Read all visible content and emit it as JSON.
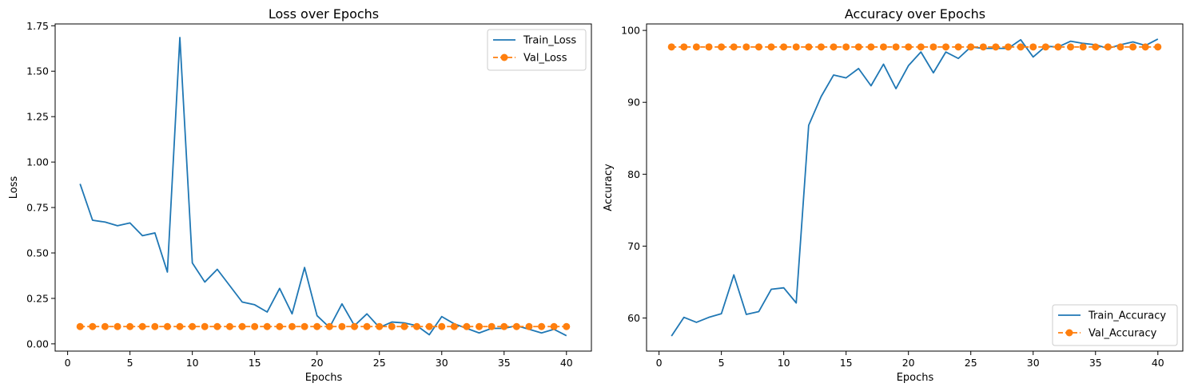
{
  "chart_data": [
    {
      "type": "line",
      "title": "Loss over Epochs",
      "xlabel": "Epochs",
      "ylabel": "Loss",
      "xlim": [
        -1,
        42
      ],
      "ylim": [
        -0.04,
        1.76
      ],
      "xticks": [
        0,
        5,
        10,
        15,
        20,
        25,
        30,
        35,
        40
      ],
      "yticks": [
        0.0,
        0.25,
        0.5,
        0.75,
        1.0,
        1.25,
        1.5,
        1.75
      ],
      "ytick_labels": [
        "0.00",
        "0.25",
        "0.50",
        "0.75",
        "1.00",
        "1.25",
        "1.50",
        "1.75"
      ],
      "grid": false,
      "legend": "top-right",
      "x": [
        1,
        2,
        3,
        4,
        5,
        6,
        7,
        8,
        9,
        10,
        11,
        12,
        13,
        14,
        15,
        16,
        17,
        18,
        19,
        20,
        21,
        22,
        23,
        24,
        25,
        26,
        27,
        28,
        29,
        30,
        31,
        32,
        33,
        34,
        35,
        36,
        37,
        38,
        39,
        40
      ],
      "series": [
        {
          "name": "Train_Loss",
          "color": "#1f77b4",
          "style": "solid",
          "marker": "none",
          "values": [
            0.88,
            0.68,
            0.67,
            0.65,
            0.665,
            0.595,
            0.61,
            0.395,
            1.685,
            0.445,
            0.34,
            0.41,
            0.32,
            0.23,
            0.215,
            0.175,
            0.305,
            0.165,
            0.42,
            0.155,
            0.09,
            0.22,
            0.1,
            0.165,
            0.09,
            0.12,
            0.115,
            0.1,
            0.05,
            0.15,
            0.11,
            0.085,
            0.06,
            0.085,
            0.085,
            0.1,
            0.08,
            0.06,
            0.08,
            0.045
          ]
        },
        {
          "name": "Val_Loss",
          "color": "#ff7f0e",
          "style": "dashed",
          "marker": "circle",
          "values": [
            0.095,
            0.095,
            0.095,
            0.095,
            0.095,
            0.095,
            0.095,
            0.095,
            0.095,
            0.095,
            0.095,
            0.095,
            0.095,
            0.095,
            0.095,
            0.095,
            0.095,
            0.095,
            0.095,
            0.095,
            0.095,
            0.095,
            0.095,
            0.095,
            0.095,
            0.095,
            0.095,
            0.095,
            0.095,
            0.095,
            0.095,
            0.095,
            0.095,
            0.095,
            0.095,
            0.095,
            0.095,
            0.095,
            0.095,
            0.095
          ]
        }
      ]
    },
    {
      "type": "line",
      "title": "Accuracy over Epochs",
      "xlabel": "Epochs",
      "ylabel": "Accuracy",
      "xlim": [
        -1,
        42
      ],
      "ylim": [
        55.4,
        100.9
      ],
      "xticks": [
        0,
        5,
        10,
        15,
        20,
        25,
        30,
        35,
        40
      ],
      "yticks": [
        60,
        70,
        80,
        90,
        100
      ],
      "ytick_labels": [
        "60",
        "70",
        "80",
        "90",
        "100"
      ],
      "grid": false,
      "legend": "bottom-right",
      "x": [
        1,
        2,
        3,
        4,
        5,
        6,
        7,
        8,
        9,
        10,
        11,
        12,
        13,
        14,
        15,
        16,
        17,
        18,
        19,
        20,
        21,
        22,
        23,
        24,
        25,
        26,
        27,
        28,
        29,
        30,
        31,
        32,
        33,
        34,
        35,
        36,
        37,
        38,
        39,
        40
      ],
      "series": [
        {
          "name": "Train_Accuracy",
          "color": "#1f77b4",
          "style": "solid",
          "marker": "none",
          "values": [
            57.5,
            60.1,
            59.4,
            60.1,
            60.6,
            66.0,
            60.5,
            60.9,
            64.0,
            64.2,
            62.1,
            86.8,
            90.8,
            93.8,
            93.4,
            94.7,
            92.3,
            95.3,
            91.9,
            95.1,
            97.0,
            94.1,
            97.0,
            96.1,
            97.7,
            97.5,
            97.5,
            97.5,
            98.7,
            96.3,
            97.8,
            97.7,
            98.5,
            98.2,
            98.0,
            97.5,
            98.0,
            98.4,
            97.9,
            98.8
          ]
        },
        {
          "name": "Val_Accuracy",
          "color": "#ff7f0e",
          "style": "dashed",
          "marker": "circle",
          "values": [
            97.7,
            97.7,
            97.7,
            97.7,
            97.7,
            97.7,
            97.7,
            97.7,
            97.7,
            97.7,
            97.7,
            97.7,
            97.7,
            97.7,
            97.7,
            97.7,
            97.7,
            97.7,
            97.7,
            97.7,
            97.7,
            97.7,
            97.7,
            97.7,
            97.7,
            97.7,
            97.7,
            97.7,
            97.7,
            97.7,
            97.7,
            97.7,
            97.7,
            97.7,
            97.7,
            97.7,
            97.7,
            97.7,
            97.7,
            97.7
          ]
        }
      ]
    }
  ]
}
